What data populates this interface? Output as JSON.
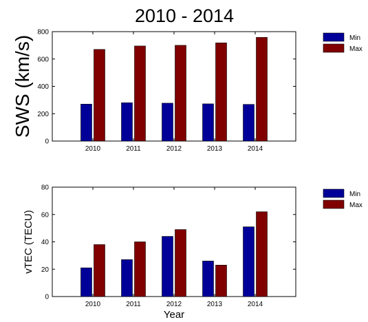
{
  "title": "2010 - 2014",
  "chart_data": [
    {
      "type": "bar",
      "ylabel": "SWS (km/s)",
      "xlabel": "",
      "categories": [
        "2010",
        "2011",
        "2012",
        "2013",
        "2014"
      ],
      "ylim": [
        0,
        800
      ],
      "yticks": [
        "0",
        "200",
        "400",
        "600",
        "800"
      ],
      "series": [
        {
          "name": "Min",
          "color": "#000099",
          "values": [
            270,
            280,
            277,
            272,
            268
          ]
        },
        {
          "name": "Max",
          "color": "#800000",
          "values": [
            670,
            695,
            700,
            718,
            758
          ]
        }
      ],
      "legend": "top-right, outside plot",
      "grid": false
    },
    {
      "type": "bar",
      "ylabel": "vTEC (TECU)",
      "xlabel": "Year",
      "categories": [
        "2010",
        "2011",
        "2012",
        "2013",
        "2014"
      ],
      "ylim": [
        0,
        80
      ],
      "yticks": [
        "0",
        "20",
        "40",
        "60",
        "80"
      ],
      "series": [
        {
          "name": "Min",
          "color": "#000099",
          "values": [
            21,
            27,
            44,
            26,
            51
          ]
        },
        {
          "name": "Max",
          "color": "#800000",
          "values": [
            38,
            40,
            49,
            23,
            62
          ]
        }
      ],
      "legend": "top-right, outside plot",
      "grid": false
    }
  ]
}
